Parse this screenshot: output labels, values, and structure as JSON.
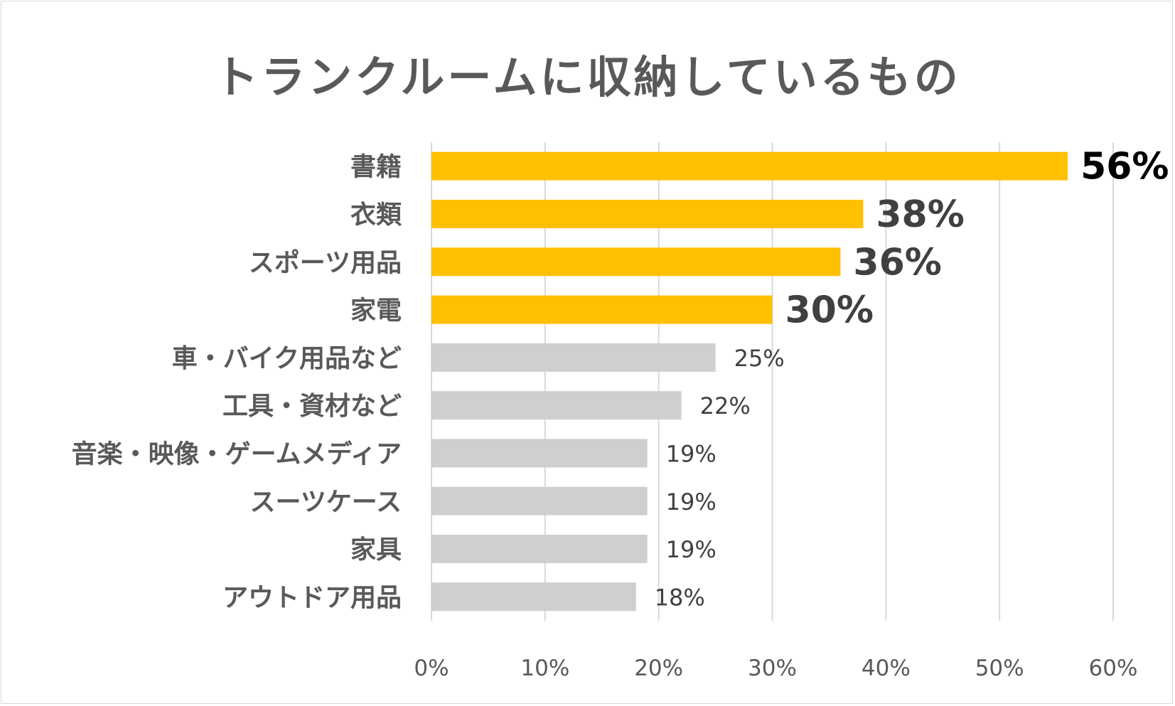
{
  "chart_data": {
    "type": "bar",
    "orientation": "horizontal",
    "title": "トランクルームに収納しているもの",
    "categories": [
      "書籍",
      "衣類",
      "スポーツ用品",
      "家電",
      "車・バイク用品など",
      "工具・資材など",
      "音楽・映像・ゲームメディア",
      "スーツケース",
      "家具",
      "アウトドア用品"
    ],
    "values": [
      56,
      38,
      36,
      30,
      25,
      22,
      19,
      19,
      19,
      18
    ],
    "value_labels": [
      "56%",
      "38%",
      "36%",
      "30%",
      "25%",
      "22%",
      "19%",
      "19%",
      "19%",
      "18%"
    ],
    "highlighted_count": 4,
    "x_ticks": [
      "0%",
      "10%",
      "20%",
      "30%",
      "40%",
      "50%",
      "60%"
    ],
    "xlim": [
      0,
      60
    ],
    "grid": "vertical",
    "legend": "none",
    "colors": {
      "highlight": "#FFC000",
      "normal": "#D0CECE",
      "grid": "#D9D9D9"
    }
  }
}
